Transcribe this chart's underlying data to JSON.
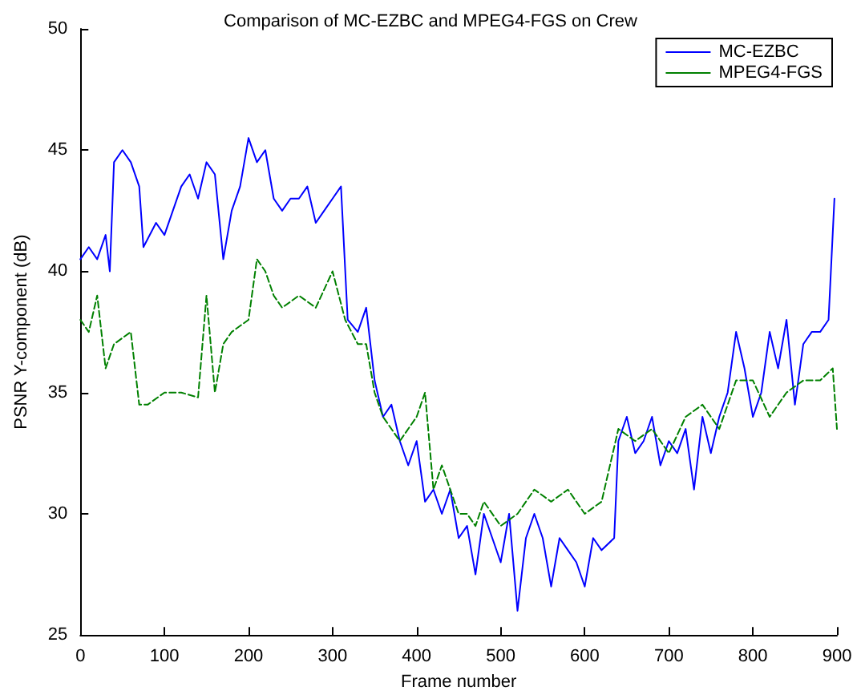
{
  "chart_data": {
    "type": "line",
    "title": "Comparison of MC-EZBC and MPEG4-FGS on Crew",
    "xlabel": "Frame number",
    "ylabel": "PSNR Y-component (dB)",
    "xlim": [
      0,
      900
    ],
    "xticks": [
      0,
      100,
      200,
      300,
      400,
      500,
      600,
      700,
      800,
      900
    ],
    "ylim": [
      25,
      50
    ],
    "yticks": [
      25,
      30,
      35,
      40,
      45,
      50
    ],
    "grid": false,
    "legend": "top right",
    "marker": "none",
    "series": [
      {
        "name": "MC-EZBC",
        "color": "#0000ff",
        "line_style": "solid",
        "x": [
          0,
          10,
          20,
          30,
          35,
          40,
          50,
          60,
          70,
          75,
          90,
          100,
          110,
          120,
          130,
          140,
          150,
          160,
          170,
          180,
          190,
          200,
          210,
          220,
          230,
          240,
          250,
          260,
          270,
          280,
          290,
          300,
          310,
          318,
          330,
          340,
          350,
          360,
          370,
          380,
          390,
          400,
          410,
          420,
          430,
          440,
          450,
          460,
          470,
          480,
          490,
          500,
          510,
          520,
          530,
          540,
          550,
          560,
          570,
          580,
          590,
          600,
          610,
          620,
          635,
          640,
          650,
          660,
          670,
          680,
          690,
          700,
          710,
          720,
          730,
          740,
          750,
          760,
          770,
          780,
          790,
          800,
          810,
          820,
          830,
          840,
          850,
          860,
          870,
          880,
          890,
          897
        ],
        "values": [
          40.5,
          41,
          40.5,
          41.5,
          40,
          44.5,
          45,
          44.5,
          43.5,
          41,
          42,
          41.5,
          42.5,
          43.5,
          44,
          43,
          44.5,
          44,
          40.5,
          42.5,
          43.5,
          45.5,
          44.5,
          45,
          43,
          42.5,
          43,
          43,
          43.5,
          42,
          42.5,
          43,
          43.5,
          38,
          37.5,
          38.5,
          35.5,
          34,
          34.5,
          33,
          32,
          33,
          30.5,
          31,
          30,
          31,
          29,
          29.5,
          27.5,
          30,
          29,
          28,
          30,
          26,
          29,
          30,
          29,
          27,
          29,
          28.5,
          28,
          27,
          29,
          28.5,
          29,
          33,
          34,
          32.5,
          33,
          34,
          32,
          33,
          32.5,
          33.5,
          31,
          34,
          32.5,
          34,
          35,
          37.5,
          36,
          34,
          35,
          37.5,
          36,
          38,
          34.5,
          37,
          37.5,
          37.5,
          38,
          43
        ]
      },
      {
        "name": "MPEG4-FGS",
        "color": "#008000",
        "line_style": "dashed",
        "x": [
          0,
          10,
          20,
          30,
          40,
          60,
          70,
          80,
          100,
          120,
          140,
          150,
          160,
          170,
          180,
          200,
          210,
          220,
          230,
          240,
          260,
          280,
          300,
          315,
          330,
          340,
          350,
          360,
          380,
          400,
          410,
          420,
          430,
          440,
          450,
          460,
          470,
          480,
          500,
          520,
          540,
          560,
          580,
          600,
          620,
          640,
          660,
          680,
          700,
          720,
          740,
          760,
          780,
          800,
          820,
          840,
          860,
          880,
          895,
          900
        ],
        "values": [
          38,
          37.5,
          39,
          36,
          37,
          37.5,
          34.5,
          34.5,
          35,
          35,
          34.8,
          39,
          35,
          37,
          37.5,
          38,
          40.5,
          40,
          39,
          38.5,
          39,
          38.5,
          40,
          38,
          37,
          37,
          35,
          34,
          33,
          34,
          35,
          31,
          32,
          31,
          30,
          30,
          29.5,
          30.5,
          29.5,
          30,
          31,
          30.5,
          31,
          30,
          30.5,
          33.5,
          33,
          33.5,
          32.5,
          34,
          34.5,
          33.5,
          35.5,
          35.5,
          34,
          35,
          35.5,
          35.5,
          36,
          33.5
        ]
      }
    ]
  }
}
